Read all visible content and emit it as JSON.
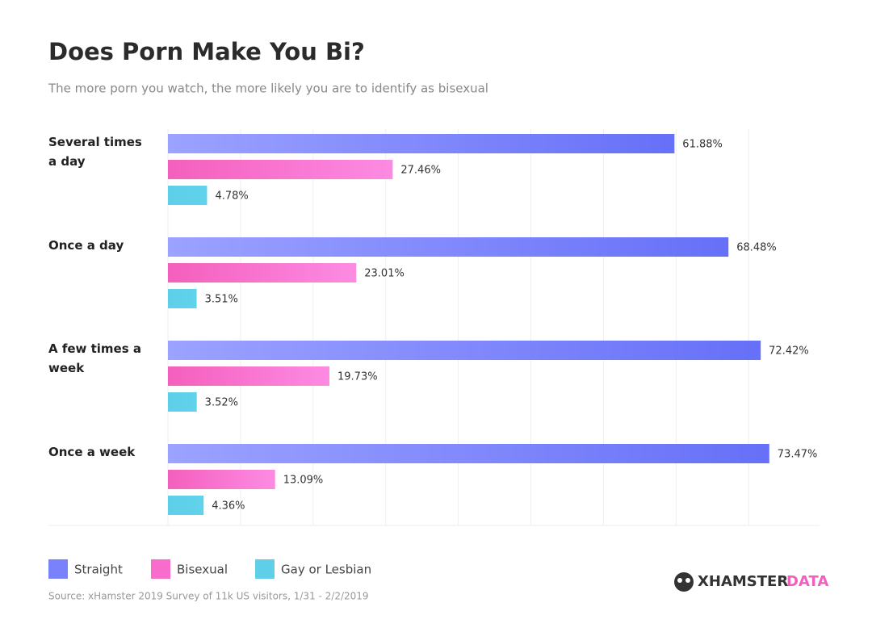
{
  "chart_data": {
    "type": "bar",
    "orientation": "horizontal",
    "title": "Does Porn Make You Bi?",
    "subtitle": "The more porn you watch, the more likely you are to identify as bisexual",
    "categories": [
      "Several times a day",
      "Once a day",
      "A few times a week",
      "Once a week"
    ],
    "series": [
      {
        "name": "Straight",
        "color": "#7a82fb",
        "values": [
          61.88,
          68.48,
          72.42,
          73.47
        ],
        "value_labels": [
          "61.88%",
          "68.48%",
          "72.42%",
          "73.47%"
        ]
      },
      {
        "name": "Bisexual",
        "color": "#f86ccb",
        "values": [
          27.46,
          23.01,
          19.73,
          13.09
        ],
        "value_labels": [
          "27.46%",
          "23.01%",
          "19.73%",
          "13.09%"
        ]
      },
      {
        "name": "Gay or Lesbian",
        "color": "#5fcfe9",
        "values": [
          4.78,
          3.51,
          3.52,
          4.36
        ],
        "value_labels": [
          "4.78%",
          "3.51%",
          "3.52%",
          "4.36%"
        ]
      }
    ],
    "xlim": [
      0,
      80
    ],
    "grid": true,
    "source": "Source: xHamster 2019 Survey of 11k US visitors, 1/31 - 2/2/2019",
    "logo": [
      "XHAMSTER",
      "DATA"
    ]
  }
}
